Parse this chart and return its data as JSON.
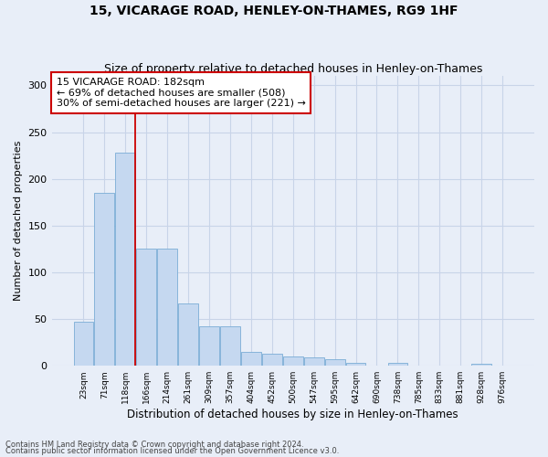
{
  "title": "15, VICARAGE ROAD, HENLEY-ON-THAMES, RG9 1HF",
  "subtitle": "Size of property relative to detached houses in Henley-on-Thames",
  "xlabel": "Distribution of detached houses by size in Henley-on-Thames",
  "ylabel": "Number of detached properties",
  "categories": [
    "23sqm",
    "71sqm",
    "118sqm",
    "166sqm",
    "214sqm",
    "261sqm",
    "309sqm",
    "357sqm",
    "404sqm",
    "452sqm",
    "500sqm",
    "547sqm",
    "595sqm",
    "642sqm",
    "690sqm",
    "738sqm",
    "785sqm",
    "833sqm",
    "881sqm",
    "928sqm",
    "976sqm"
  ],
  "values": [
    47,
    185,
    228,
    125,
    125,
    67,
    42,
    42,
    15,
    13,
    10,
    9,
    7,
    3,
    0,
    3,
    0,
    0,
    0,
    2,
    0
  ],
  "bar_color": "#c5d8f0",
  "bar_edge_color": "#7aadd6",
  "grid_color": "#c8d4e8",
  "background_color": "#e8eef8",
  "subject_line_color": "#cc0000",
  "annotation_text": "15 VICARAGE ROAD: 182sqm\n← 69% of detached houses are smaller (508)\n30% of semi-detached houses are larger (221) →",
  "annotation_box_color": "#ffffff",
  "annotation_box_edge": "#cc0000",
  "footnote1": "Contains HM Land Registry data © Crown copyright and database right 2024.",
  "footnote2": "Contains public sector information licensed under the Open Government Licence v3.0.",
  "ylim": [
    0,
    310
  ],
  "yticks": [
    0,
    50,
    100,
    150,
    200,
    250,
    300
  ],
  "title_fontsize": 10,
  "subtitle_fontsize": 9
}
